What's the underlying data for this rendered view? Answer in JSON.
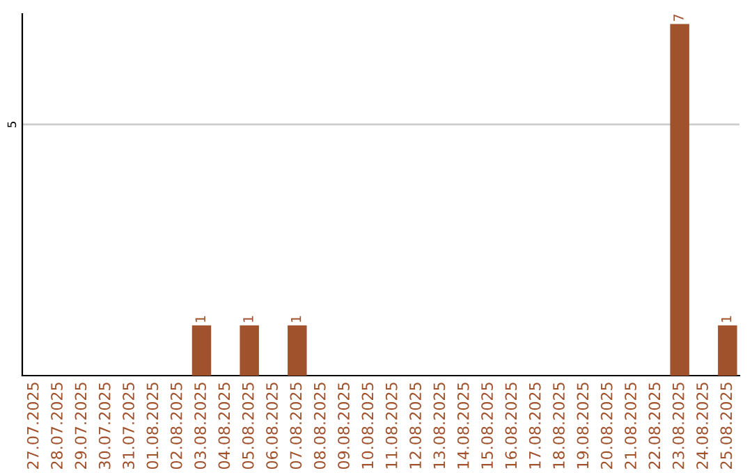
{
  "chart_data": {
    "type": "bar",
    "categories": [
      "27.07.2025",
      "28.07.2025",
      "29.07.2025",
      "30.07.2025",
      "31.07.2025",
      "01.08.2025",
      "02.08.2025",
      "03.08.2025",
      "04.08.2025",
      "05.08.2025",
      "06.08.2025",
      "07.08.2025",
      "08.08.2025",
      "09.08.2025",
      "10.08.2025",
      "11.08.2025",
      "12.08.2025",
      "13.08.2025",
      "14.08.2025",
      "15.08.2025",
      "16.08.2025",
      "17.08.2025",
      "18.08.2025",
      "19.08.2025",
      "20.08.2025",
      "21.08.2025",
      "22.08.2025",
      "23.08.2025",
      "24.08.2025",
      "25.08.2025"
    ],
    "values": [
      0,
      0,
      0,
      0,
      0,
      0,
      0,
      1,
      0,
      1,
      0,
      1,
      0,
      0,
      0,
      0,
      0,
      0,
      0,
      0,
      0,
      0,
      0,
      0,
      0,
      0,
      0,
      7,
      0,
      1
    ],
    "value_labels": [
      null,
      null,
      null,
      null,
      null,
      null,
      null,
      "1",
      null,
      "1",
      null,
      "1",
      null,
      null,
      null,
      null,
      null,
      null,
      null,
      null,
      null,
      null,
      null,
      null,
      null,
      null,
      null,
      "7",
      null,
      "1"
    ],
    "color": "#a0522d",
    "ylim": [
      0,
      7.2
    ],
    "yticks": [
      5
    ],
    "grid": "y",
    "legend": false
  }
}
